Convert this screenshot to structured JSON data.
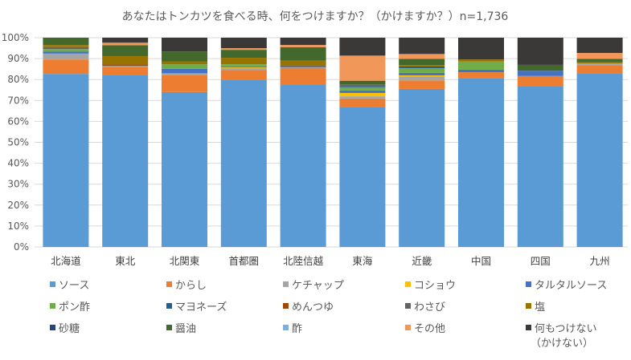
{
  "chart_data": {
    "type": "bar",
    "stacked": true,
    "percent": true,
    "title": "あなたはトンカツを食べる時、何をつけますか？（かけますか？）n=1,736",
    "xlabel": "",
    "ylabel": "",
    "ylim": [
      0,
      100
    ],
    "yticks": [
      "0%",
      "10%",
      "20%",
      "30%",
      "40%",
      "50%",
      "60%",
      "70%",
      "80%",
      "90%",
      "100%"
    ],
    "grid": true,
    "legend_position": "bottom",
    "categories": [
      "北海道",
      "東北",
      "北関東",
      "首都圏",
      "北陸信越",
      "東海",
      "近畿",
      "中国",
      "四国",
      "九州"
    ],
    "series": [
      {
        "name": "ソース",
        "color": "#5B9BD5",
        "values": [
          82.7,
          82.0,
          74.0,
          80.0,
          77.7,
          66.3,
          75.5,
          80.7,
          76.8,
          83.0
        ]
      },
      {
        "name": "からし",
        "color": "#ED7D31",
        "values": [
          6.9,
          4.0,
          8.0,
          4.5,
          8.1,
          4.1,
          4.1,
          2.8,
          4.9,
          3.8
        ]
      },
      {
        "name": "ケチャップ",
        "color": "#A5A5A5",
        "values": [
          2.8,
          0.5,
          1.0,
          1.0,
          0.4,
          1.0,
          1.9,
          0.0,
          0.0,
          0.9
        ]
      },
      {
        "name": "コショウ",
        "color": "#FFC000",
        "values": [
          0.0,
          0.0,
          0.0,
          0.3,
          0.0,
          1.6,
          0.5,
          0.0,
          0.0,
          0.0
        ]
      },
      {
        "name": "タルタルソース",
        "color": "#4472C4",
        "values": [
          0.9,
          0.0,
          2.1,
          0.5,
          0.0,
          1.2,
          1.2,
          1.2,
          2.5,
          0.0
        ]
      },
      {
        "name": "ポン酢",
        "color": "#70AD47",
        "values": [
          1.3,
          0.0,
          2.2,
          1.0,
          0.0,
          1.5,
          2.2,
          3.9,
          0.0,
          0.0
        ]
      },
      {
        "name": "マヨネーズ",
        "color": "#255E91",
        "values": [
          0.0,
          0.0,
          0.0,
          0.0,
          0.0,
          0.6,
          0.8,
          0.0,
          0.0,
          0.0
        ]
      },
      {
        "name": "めんつゆ",
        "color": "#9E480E",
        "values": [
          0.0,
          0.7,
          0.0,
          0.0,
          0.0,
          0.0,
          0.0,
          0.0,
          0.0,
          0.0
        ]
      },
      {
        "name": "わさび",
        "color": "#636363",
        "values": [
          0.9,
          0.0,
          0.0,
          0.0,
          0.7,
          0.8,
          0.0,
          0.0,
          0.0,
          0.0
        ]
      },
      {
        "name": "塩",
        "color": "#997300",
        "values": [
          1.0,
          4.0,
          1.4,
          3.1,
          2.5,
          0.0,
          0.7,
          1.0,
          0.0,
          0.8
        ]
      },
      {
        "name": "砂糖",
        "color": "#264478",
        "values": [
          0.0,
          0.0,
          0.0,
          0.0,
          0.0,
          0.0,
          0.0,
          0.0,
          0.0,
          0.0
        ]
      },
      {
        "name": "醤油",
        "color": "#43682B",
        "values": [
          3.5,
          5.2,
          4.7,
          3.8,
          6.4,
          1.7,
          3.0,
          0.0,
          2.8,
          1.4
        ]
      },
      {
        "name": "酢",
        "color": "#7CAFDD",
        "values": [
          0.0,
          0.0,
          0.0,
          0.0,
          0.0,
          0.0,
          0.0,
          0.0,
          0.0,
          0.0
        ]
      },
      {
        "name": "その他",
        "color": "#F1975A",
        "values": [
          0.0,
          1.2,
          0.0,
          0.8,
          1.1,
          11.9,
          2.3,
          0.0,
          0.0,
          2.8
        ]
      },
      {
        "name": "何もつけない（かけない）",
        "color": "#3B3838",
        "values": [
          0.0,
          2.4,
          6.6,
          5.0,
          3.5,
          8.5,
          7.8,
          10.4,
          13.0,
          7.3
        ]
      }
    ]
  },
  "legend": {
    "items": [
      {
        "label": "ソース",
        "color": "#5B9BD5"
      },
      {
        "label": "からし",
        "color": "#ED7D31"
      },
      {
        "label": "ケチャップ",
        "color": "#A5A5A5"
      },
      {
        "label": "コショウ",
        "color": "#FFC000"
      },
      {
        "label": "タルタルソース",
        "color": "#4472C4"
      },
      {
        "label": "ポン酢",
        "color": "#70AD47"
      },
      {
        "label": "マヨネーズ",
        "color": "#255E91"
      },
      {
        "label": "めんつゆ",
        "color": "#9E480E"
      },
      {
        "label": "わさび",
        "color": "#636363"
      },
      {
        "label": "塩",
        "color": "#997300"
      },
      {
        "label": "砂糖",
        "color": "#264478"
      },
      {
        "label": "醤油",
        "color": "#43682B"
      },
      {
        "label": "酢",
        "color": "#7CAFDD"
      },
      {
        "label": "その他",
        "color": "#F1975A"
      },
      {
        "label": "何もつけない",
        "label2": "（かけない）",
        "color": "#3B3838"
      }
    ]
  }
}
